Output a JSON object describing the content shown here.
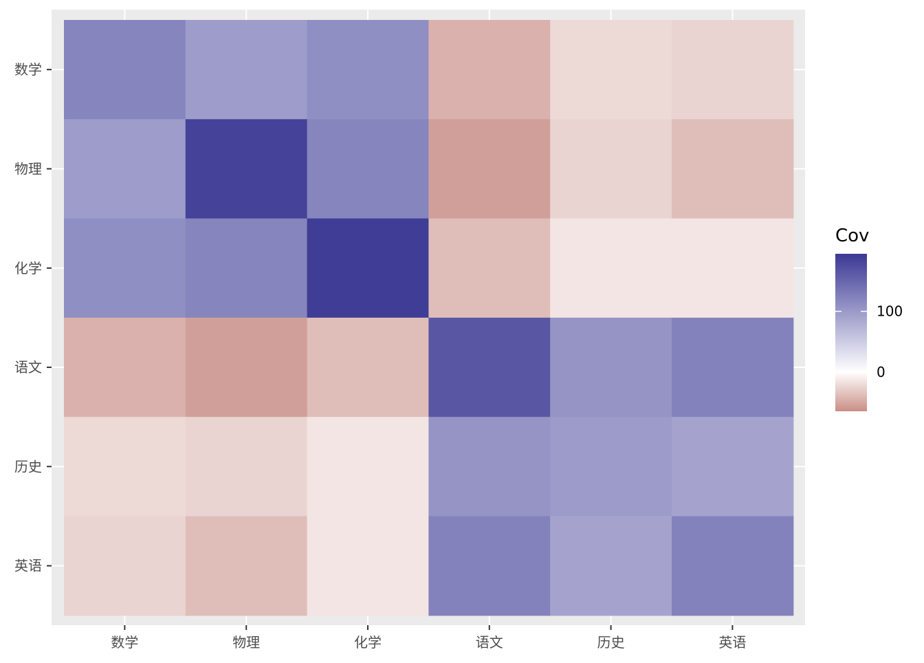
{
  "chart_data": {
    "type": "heatmap",
    "x_categories": [
      "数学",
      "物理",
      "化学",
      "语文",
      "历史",
      "英语"
    ],
    "y_categories": [
      "数学",
      "物理",
      "化学",
      "语文",
      "历史",
      "英语"
    ],
    "values": [
      [
        120,
        97,
        110,
        -45,
        -22,
        -25
      ],
      [
        97,
        185,
        120,
        -55,
        -25,
        -38
      ],
      [
        110,
        120,
        190,
        -38,
        -15,
        -15
      ],
      [
        -45,
        -55,
        -38,
        165,
        105,
        122
      ],
      [
        -22,
        -25,
        -15,
        105,
        98,
        90
      ],
      [
        -25,
        -38,
        -15,
        122,
        90,
        122
      ]
    ],
    "legend": {
      "title": "Cov",
      "ticks": [
        0,
        100
      ],
      "range": [
        -65,
        195
      ]
    },
    "colors": {
      "high": "#3b3894",
      "mid": "#ffffff",
      "low": "#c98e87",
      "panel_background": "#ebebeb",
      "gridline": "#ffffff"
    },
    "xlabel": "",
    "ylabel": ""
  }
}
